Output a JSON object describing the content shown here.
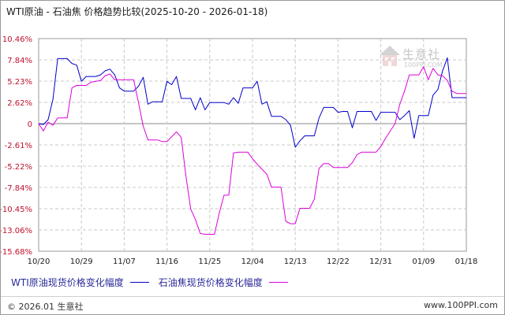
{
  "title": "WTI原油 - 石油焦 价格趋势比较(2025-10-20 - 2026-01-18)",
  "footer": {
    "left": "© 2026.01 生意社",
    "right": "www.100PPI.com"
  },
  "watermark": {
    "cn": "生意社",
    "en": "100PPI.COM"
  },
  "colors": {
    "series1": "#0000cc",
    "series2": "#dd00dd",
    "ytick_labels": "#c0112b",
    "grid": "#c8c8c8"
  },
  "chart_data": {
    "type": "line",
    "title": "WTI原油 - 石油焦 价格趋势比较(2025-10-20 - 2026-01-18)",
    "xlabel": "",
    "ylabel": "",
    "ylim": [
      -15.68,
      10.46
    ],
    "grid": true,
    "legend_placement": "bottom",
    "x_start": "2025-10-20",
    "x_end": "2026-01-18",
    "yticks": [
      {
        "value": 10.46,
        "label": "10.46%"
      },
      {
        "value": 7.84,
        "label": "7.84%"
      },
      {
        "value": 5.23,
        "label": "5.23%"
      },
      {
        "value": 2.62,
        "label": "2.62%"
      },
      {
        "value": 0,
        "label": "0"
      },
      {
        "value": -2.61,
        "label": "-2.61%"
      },
      {
        "value": -5.22,
        "label": "-5.22%"
      },
      {
        "value": -7.84,
        "label": "-7.84%"
      },
      {
        "value": -10.45,
        "label": "-10.45%"
      },
      {
        "value": -13.06,
        "label": "-13.06%"
      },
      {
        "value": -15.68,
        "label": "-15.68%"
      }
    ],
    "xticks": [
      {
        "date": "2025-10-20",
        "label": "10/20"
      },
      {
        "date": "2025-10-29",
        "label": "10/29"
      },
      {
        "date": "2025-11-07",
        "label": "11/07"
      },
      {
        "date": "2025-11-16",
        "label": "11/16"
      },
      {
        "date": "2025-11-25",
        "label": "11/25"
      },
      {
        "date": "2025-12-04",
        "label": "12/04"
      },
      {
        "date": "2025-12-13",
        "label": "12/13"
      },
      {
        "date": "2025-12-22",
        "label": "12/22"
      },
      {
        "date": "2025-12-31",
        "label": "12/31"
      },
      {
        "date": "2026-01-09",
        "label": "01/09"
      },
      {
        "date": "2026-01-18",
        "label": "01/18"
      }
    ],
    "series": [
      {
        "name": "WTI原油现货价格变化幅度",
        "color": "#0000cc",
        "points": [
          [
            "2025-10-20",
            0.0
          ],
          [
            "2025-10-21",
            -0.1
          ],
          [
            "2025-10-22",
            0.5
          ],
          [
            "2025-10-23",
            3.0
          ],
          [
            "2025-10-24",
            8.0
          ],
          [
            "2025-10-26",
            8.0
          ],
          [
            "2025-10-27",
            7.4
          ],
          [
            "2025-10-28",
            7.2
          ],
          [
            "2025-10-29",
            5.2
          ],
          [
            "2025-10-30",
            5.8
          ],
          [
            "2025-11-01",
            5.8
          ],
          [
            "2025-11-02",
            6.0
          ],
          [
            "2025-11-03",
            6.5
          ],
          [
            "2025-11-04",
            6.7
          ],
          [
            "2025-11-05",
            6.0
          ],
          [
            "2025-11-06",
            4.4
          ],
          [
            "2025-11-07",
            4.0
          ],
          [
            "2025-11-09",
            4.0
          ],
          [
            "2025-11-10",
            4.6
          ],
          [
            "2025-11-11",
            5.7
          ],
          [
            "2025-11-12",
            2.4
          ],
          [
            "2025-11-13",
            2.7
          ],
          [
            "2025-11-15",
            2.7
          ],
          [
            "2025-11-16",
            5.2
          ],
          [
            "2025-11-17",
            4.8
          ],
          [
            "2025-11-18",
            5.8
          ],
          [
            "2025-11-19",
            3.1
          ],
          [
            "2025-11-21",
            3.1
          ],
          [
            "2025-11-22",
            1.7
          ],
          [
            "2025-11-23",
            3.2
          ],
          [
            "2025-11-24",
            1.7
          ],
          [
            "2025-11-25",
            2.6
          ],
          [
            "2025-11-28",
            2.6
          ],
          [
            "2025-11-29",
            2.4
          ],
          [
            "2025-11-30",
            3.2
          ],
          [
            "2025-12-01",
            2.5
          ],
          [
            "2025-12-02",
            4.4
          ],
          [
            "2025-12-04",
            4.4
          ],
          [
            "2025-12-05",
            5.2
          ],
          [
            "2025-12-06",
            2.4
          ],
          [
            "2025-12-07",
            2.7
          ],
          [
            "2025-12-08",
            0.9
          ],
          [
            "2025-12-10",
            0.9
          ],
          [
            "2025-12-11",
            0.5
          ],
          [
            "2025-12-12",
            -0.2
          ],
          [
            "2025-12-13",
            -2.9
          ],
          [
            "2025-12-14",
            -2.1
          ],
          [
            "2025-12-15",
            -1.5
          ],
          [
            "2025-12-17",
            -1.5
          ],
          [
            "2025-12-18",
            0.7
          ],
          [
            "2025-12-19",
            2.0
          ],
          [
            "2025-12-21",
            2.0
          ],
          [
            "2025-12-22",
            1.4
          ],
          [
            "2025-12-23",
            1.5
          ],
          [
            "2025-12-24",
            1.5
          ],
          [
            "2025-12-25",
            -0.5
          ],
          [
            "2025-12-26",
            1.5
          ],
          [
            "2025-12-29",
            1.5
          ],
          [
            "2025-12-30",
            0.4
          ],
          [
            "2025-12-31",
            1.4
          ],
          [
            "2026-01-03",
            1.4
          ],
          [
            "2026-01-04",
            0.5
          ],
          [
            "2026-01-05",
            1.0
          ],
          [
            "2026-01-06",
            1.6
          ],
          [
            "2026-01-07",
            -1.8
          ],
          [
            "2026-01-08",
            1.0
          ],
          [
            "2026-01-10",
            1.0
          ],
          [
            "2026-01-11",
            3.5
          ],
          [
            "2026-01-12",
            4.2
          ],
          [
            "2026-01-13",
            6.5
          ],
          [
            "2026-01-14",
            8.1
          ],
          [
            "2026-01-15",
            3.2
          ],
          [
            "2026-01-18",
            3.2
          ]
        ]
      },
      {
        "name": "石油焦现货价格变化幅度",
        "color": "#dd00dd",
        "points": [
          [
            "2025-10-20",
            0.0
          ],
          [
            "2025-10-21",
            -0.9
          ],
          [
            "2025-10-22",
            0.2
          ],
          [
            "2025-10-23",
            -0.2
          ],
          [
            "2025-10-24",
            0.7
          ],
          [
            "2025-10-26",
            0.7
          ],
          [
            "2025-10-27",
            4.4
          ],
          [
            "2025-10-28",
            4.7
          ],
          [
            "2025-10-30",
            4.7
          ],
          [
            "2025-10-31",
            5.1
          ],
          [
            "2025-11-02",
            5.3
          ],
          [
            "2025-11-03",
            5.9
          ],
          [
            "2025-11-04",
            6.1
          ],
          [
            "2025-11-05",
            5.4
          ],
          [
            "2025-11-09",
            5.4
          ],
          [
            "2025-11-10",
            2.6
          ],
          [
            "2025-11-11",
            -0.3
          ],
          [
            "2025-11-12",
            -2.0
          ],
          [
            "2025-11-14",
            -2.0
          ],
          [
            "2025-11-15",
            -2.2
          ],
          [
            "2025-11-16",
            -2.2
          ],
          [
            "2025-11-18",
            -1.0
          ],
          [
            "2025-11-19",
            -1.7
          ],
          [
            "2025-11-20",
            -6.5
          ],
          [
            "2025-11-21",
            -10.5
          ],
          [
            "2025-11-22",
            -11.8
          ],
          [
            "2025-11-23",
            -13.5
          ],
          [
            "2025-11-24",
            -13.6
          ],
          [
            "2025-11-26",
            -13.6
          ],
          [
            "2025-11-27",
            -11.0
          ],
          [
            "2025-11-28",
            -8.8
          ],
          [
            "2025-11-29",
            -8.8
          ],
          [
            "2025-11-30",
            -3.6
          ],
          [
            "2025-12-01",
            -3.5
          ],
          [
            "2025-12-03",
            -3.5
          ],
          [
            "2025-12-04",
            -4.3
          ],
          [
            "2025-12-05",
            -5.0
          ],
          [
            "2025-12-06",
            -5.6
          ],
          [
            "2025-12-07",
            -6.2
          ],
          [
            "2025-12-08",
            -7.8
          ],
          [
            "2025-12-10",
            -7.8
          ],
          [
            "2025-12-11",
            -12.0
          ],
          [
            "2025-12-12",
            -12.3
          ],
          [
            "2025-12-13",
            -12.3
          ],
          [
            "2025-12-14",
            -10.4
          ],
          [
            "2025-12-16",
            -10.4
          ],
          [
            "2025-12-17",
            -9.3
          ],
          [
            "2025-12-18",
            -5.5
          ],
          [
            "2025-12-19",
            -4.9
          ],
          [
            "2025-12-20",
            -4.9
          ],
          [
            "2025-12-21",
            -5.4
          ],
          [
            "2025-12-24",
            -5.4
          ],
          [
            "2025-12-25",
            -4.8
          ],
          [
            "2025-12-26",
            -3.8
          ],
          [
            "2025-12-27",
            -3.5
          ],
          [
            "2025-12-30",
            -3.5
          ],
          [
            "2025-12-31",
            -2.8
          ],
          [
            "2026-01-01",
            -1.8
          ],
          [
            "2026-01-03",
            0.0
          ],
          [
            "2026-01-04",
            2.4
          ],
          [
            "2026-01-05",
            4.0
          ],
          [
            "2026-01-06",
            6.0
          ],
          [
            "2026-01-08",
            6.0
          ],
          [
            "2026-01-09",
            7.0
          ],
          [
            "2026-01-10",
            5.4
          ],
          [
            "2026-01-11",
            6.8
          ],
          [
            "2026-01-12",
            6.0
          ],
          [
            "2026-01-13",
            5.9
          ],
          [
            "2026-01-14",
            5.3
          ],
          [
            "2026-01-15",
            4.0
          ],
          [
            "2026-01-16",
            3.7
          ],
          [
            "2026-01-18",
            3.7
          ]
        ]
      }
    ]
  }
}
